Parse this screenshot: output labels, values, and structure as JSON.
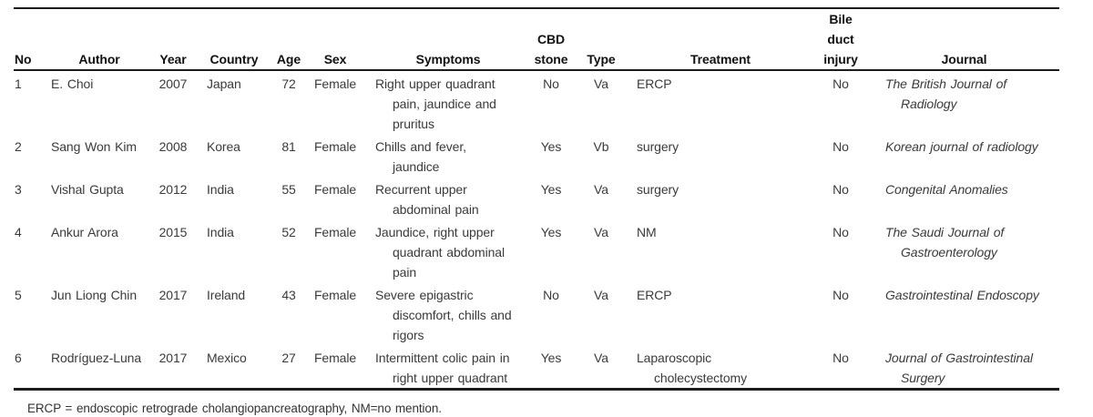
{
  "meta": {
    "footnote": "ERCP = endoscopic retrograde cholangiopancreatography, NM=no mention."
  },
  "table": {
    "headers": {
      "no": "No",
      "author": "Author",
      "year": "Year",
      "country": "Country",
      "age": "Age",
      "sex": "Sex",
      "symptoms": "Symptoms",
      "cbd_stone": "CBD\nstone",
      "type": "Type",
      "treatment": "Treatment",
      "bile_duct_injury": "Bile\nduct\ninjury",
      "journal": "Journal"
    },
    "rows": [
      {
        "no": "1",
        "author": "E. Choi",
        "year": "2007",
        "country": "Japan",
        "age": "72",
        "sex": "Female",
        "symptoms": "Right upper quadrant\npain, jaundice and\npruritus",
        "cbd_stone": "No",
        "type": "Va",
        "treatment": "ERCP",
        "bile_duct_injury": "No",
        "journal": "The British Journal of\nRadiology"
      },
      {
        "no": "2",
        "author": "Sang Won Kim",
        "year": "2008",
        "country": "Korea",
        "age": "81",
        "sex": "Female",
        "symptoms": "Chills and fever,\njaundice",
        "cbd_stone": "Yes",
        "type": "Vb",
        "treatment": "surgery",
        "bile_duct_injury": "No",
        "journal": "Korean journal of radiology"
      },
      {
        "no": "3",
        "author": "Vishal Gupta",
        "year": "2012",
        "country": "India",
        "age": "55",
        "sex": "Female",
        "symptoms": "Recurrent upper\nabdominal pain",
        "cbd_stone": "Yes",
        "type": "Va",
        "treatment": "surgery",
        "bile_duct_injury": "No",
        "journal": "Congenital Anomalies"
      },
      {
        "no": "4",
        "author": "Ankur Arora",
        "year": "2015",
        "country": "India",
        "age": "52",
        "sex": "Female",
        "symptoms": "Jaundice, right upper\nquadrant abdominal\npain",
        "cbd_stone": "Yes",
        "type": "Va",
        "treatment": "NM",
        "bile_duct_injury": "No",
        "journal": "The Saudi Journal of\nGastroenterology"
      },
      {
        "no": "5",
        "author": "Jun Liong Chin",
        "year": "2017",
        "country": "Ireland",
        "age": "43",
        "sex": "Female",
        "symptoms": "Severe epigastric\ndiscomfort, chills and\nrigors",
        "cbd_stone": "No",
        "type": "Va",
        "treatment": "ERCP",
        "bile_duct_injury": "No",
        "journal": "Gastrointestinal Endoscopy"
      },
      {
        "no": "6",
        "author": "Rodríguez-Luna",
        "year": "2017",
        "country": "Mexico",
        "age": "27",
        "sex": "Female",
        "symptoms": "Intermittent colic pain in\nright upper quadrant",
        "cbd_stone": "Yes",
        "type": "Va",
        "treatment": "Laparoscopic\ncholecystectomy",
        "bile_duct_injury": "No",
        "journal": "Journal of Gastrointestinal\nSurgery"
      }
    ]
  }
}
